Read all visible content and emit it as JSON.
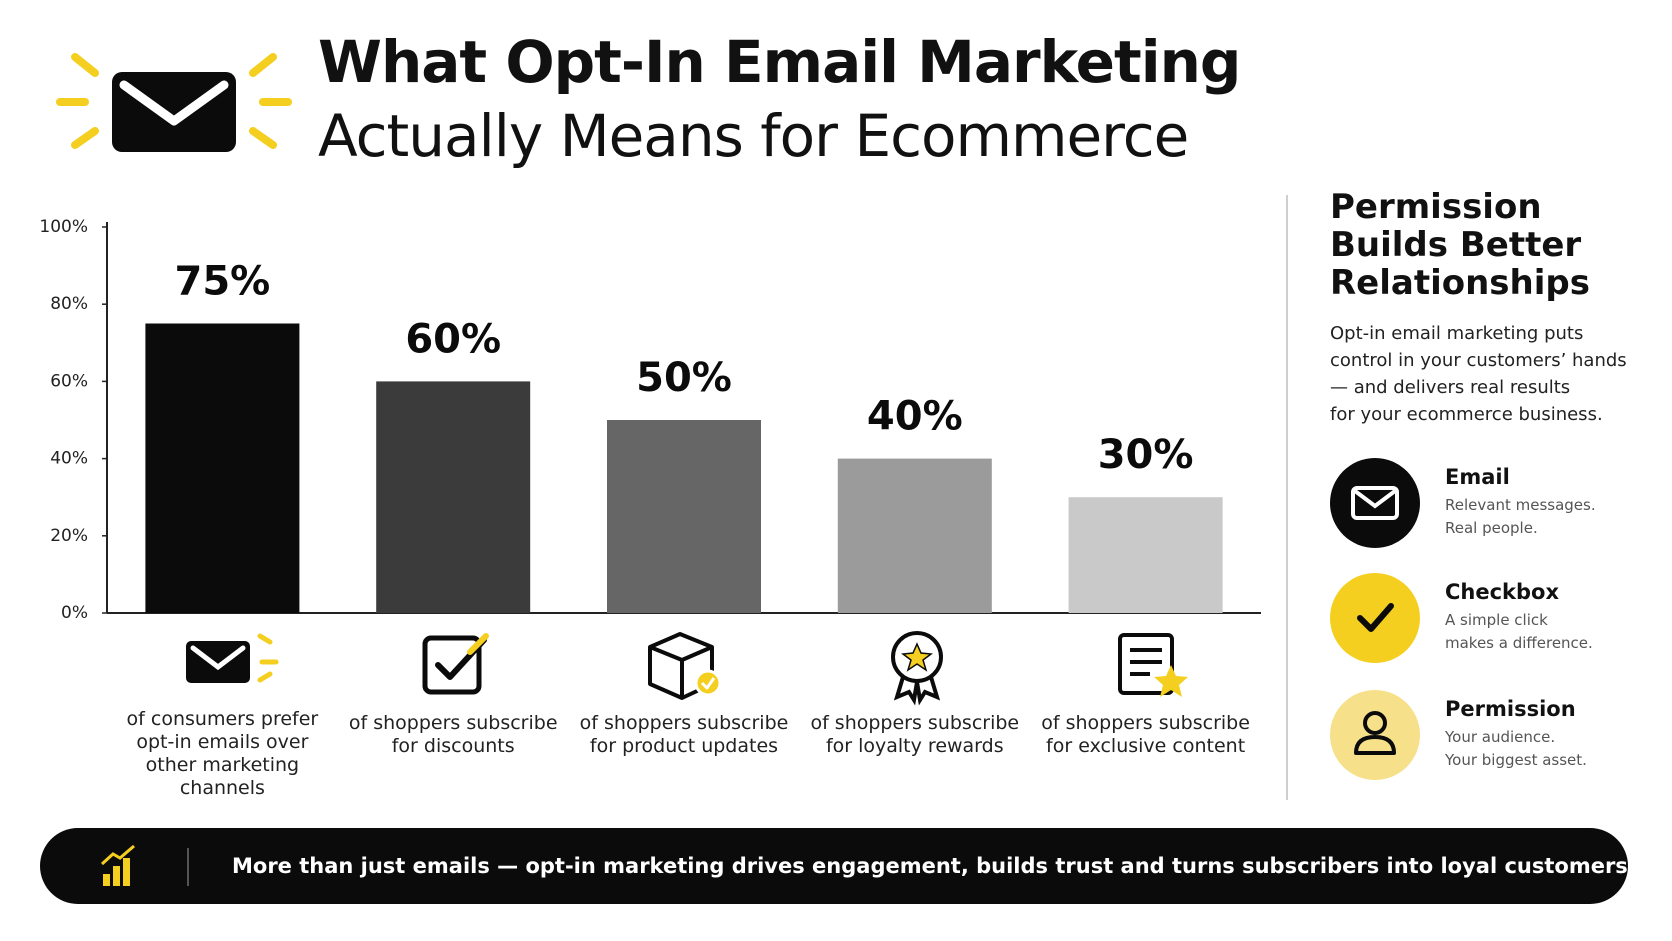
{
  "header": {
    "title_line1": "What Opt-In Email Marketing",
    "title_line2": "Actually Means for Ecommerce"
  },
  "chart_data": {
    "type": "bar",
    "categories": [
      "of consumers prefer opt-in emails over other marketing channels",
      "of shoppers subscribe for discounts",
      "of shoppers subscribe for product updates",
      "of shoppers subscribe for loyalty rewards",
      "of shoppers subscribe for exclusive content"
    ],
    "values": [
      75,
      60,
      50,
      40,
      30
    ],
    "value_labels": [
      "75%",
      "60%",
      "50%",
      "40%",
      "30%"
    ],
    "colors": [
      "#0b0b0b",
      "#3b3b3b",
      "#666666",
      "#9b9b9b",
      "#c9c9c9"
    ],
    "ylim": [
      0,
      100
    ],
    "yticks": [
      {
        "value": 0,
        "label": "0%"
      },
      {
        "value": 20,
        "label": "20%"
      },
      {
        "value": 40,
        "label": "40%"
      },
      {
        "value": 60,
        "label": "60%"
      },
      {
        "value": 80,
        "label": "80%"
      },
      {
        "value": 100,
        "label": "100%"
      }
    ],
    "grid": false
  },
  "sidebar": {
    "title": "Permission Builds Better Relationships",
    "description": [
      "Opt-in email marketing puts",
      "control in your customers’ hands",
      "— and delivers real results",
      "for your ecommerce business."
    ],
    "items": [
      {
        "title": "Email",
        "lines": [
          "Relevant messages.",
          "Real people."
        ]
      },
      {
        "title": "Checkbox",
        "lines": [
          "A simple click",
          "makes a difference."
        ]
      },
      {
        "title": "Permission",
        "lines": [
          "Your audience.",
          "Your biggest asset."
        ]
      }
    ]
  },
  "footer": {
    "text": "More than just emails — opt-in marketing drives engagement, builds trust and turns subscribers into loyal customers."
  }
}
